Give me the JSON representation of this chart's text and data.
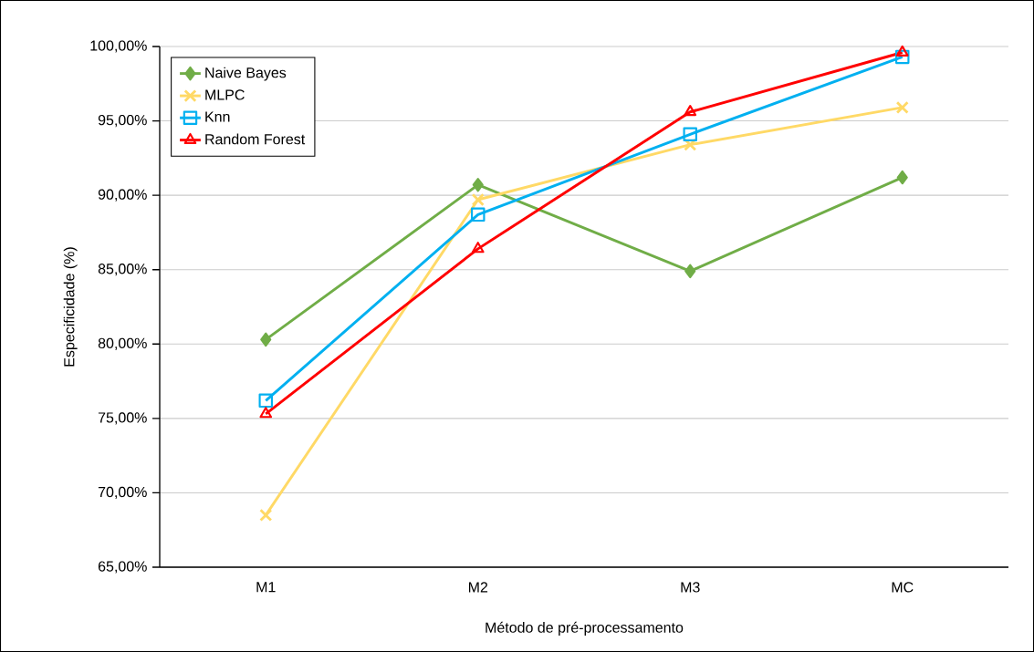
{
  "chart_data": {
    "type": "line",
    "xlabel": "Método de pré-processamento",
    "ylabel": "Especificidade (%)",
    "categories": [
      "M1",
      "M2",
      "M3",
      "MC"
    ],
    "ylim": [
      65,
      100
    ],
    "yticks": [
      {
        "value": 65,
        "label": "65,00%"
      },
      {
        "value": 70,
        "label": "70,00%"
      },
      {
        "value": 75,
        "label": "75,00%"
      },
      {
        "value": 80,
        "label": "80,00%"
      },
      {
        "value": 85,
        "label": "85,00%"
      },
      {
        "value": 90,
        "label": "90,00%"
      },
      {
        "value": 95,
        "label": "95,00%"
      },
      {
        "value": 100,
        "label": "100,00%"
      }
    ],
    "grid": "y",
    "legend": "top left",
    "line_style": "solid",
    "series": [
      {
        "name": "Naive Bayes",
        "color": "#70ad47",
        "marker": "diamond",
        "values": [
          80.3,
          90.7,
          84.9,
          91.2
        ]
      },
      {
        "name": "MLPC",
        "color": "#ffd966",
        "marker": "cross",
        "values": [
          68.5,
          89.7,
          93.4,
          95.9
        ]
      },
      {
        "name": "Knn",
        "color": "#00b0f0",
        "marker": "square",
        "values": [
          76.2,
          88.7,
          94.1,
          99.3
        ]
      },
      {
        "name": "Random Forest",
        "color": "#ff0000",
        "marker": "triangle",
        "values": [
          75.3,
          86.4,
          95.6,
          99.6
        ]
      }
    ]
  }
}
